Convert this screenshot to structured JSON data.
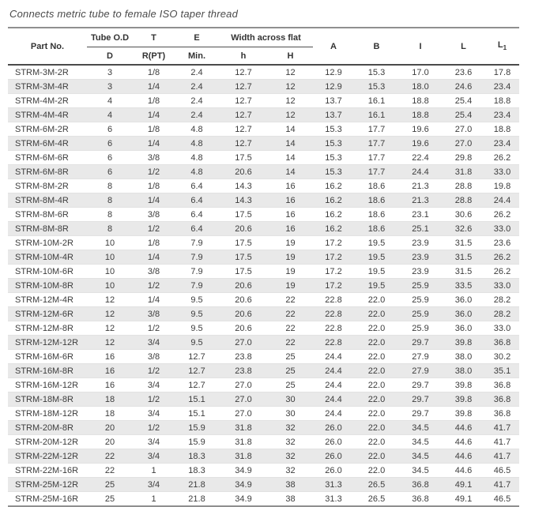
{
  "title": "Connects metric tube to female ISO taper thread",
  "table": {
    "header": {
      "part_no": "Part No.",
      "tube_od": "Tube O.D",
      "t": "T",
      "e": "E",
      "width_across_flat": "Width across flat",
      "d": "D",
      "r_pt": "R(PT)",
      "min": "Min.",
      "h_lower": "h",
      "h_upper": "H",
      "a": "A",
      "b": "B",
      "i": "I",
      "l": "L",
      "l1_base": "L",
      "l1_sub": "1"
    },
    "rows": [
      [
        "STRM-3M-2R",
        "3",
        "1/8",
        "2.4",
        "12.7",
        "12",
        "12.9",
        "15.3",
        "17.0",
        "23.6",
        "17.8"
      ],
      [
        "STRM-3M-4R",
        "3",
        "1/4",
        "2.4",
        "12.7",
        "12",
        "12.9",
        "15.3",
        "18.0",
        "24.6",
        "23.4"
      ],
      [
        "STRM-4M-2R",
        "4",
        "1/8",
        "2.4",
        "12.7",
        "12",
        "13.7",
        "16.1",
        "18.8",
        "25.4",
        "18.8"
      ],
      [
        "STRM-4M-4R",
        "4",
        "1/4",
        "2.4",
        "12.7",
        "12",
        "13.7",
        "16.1",
        "18.8",
        "25.4",
        "23.4"
      ],
      [
        "STRM-6M-2R",
        "6",
        "1/8",
        "4.8",
        "12.7",
        "14",
        "15.3",
        "17.7",
        "19.6",
        "27.0",
        "18.8"
      ],
      [
        "STRM-6M-4R",
        "6",
        "1/4",
        "4.8",
        "12.7",
        "14",
        "15.3",
        "17.7",
        "19.6",
        "27.0",
        "23.4"
      ],
      [
        "STRM-6M-6R",
        "6",
        "3/8",
        "4.8",
        "17.5",
        "14",
        "15.3",
        "17.7",
        "22.4",
        "29.8",
        "26.2"
      ],
      [
        "STRM-6M-8R",
        "6",
        "1/2",
        "4.8",
        "20.6",
        "14",
        "15.3",
        "17.7",
        "24.4",
        "31.8",
        "33.0"
      ],
      [
        "STRM-8M-2R",
        "8",
        "1/8",
        "6.4",
        "14.3",
        "16",
        "16.2",
        "18.6",
        "21.3",
        "28.8",
        "19.8"
      ],
      [
        "STRM-8M-4R",
        "8",
        "1/4",
        "6.4",
        "14.3",
        "16",
        "16.2",
        "18.6",
        "21.3",
        "28.8",
        "24.4"
      ],
      [
        "STRM-8M-6R",
        "8",
        "3/8",
        "6.4",
        "17.5",
        "16",
        "16.2",
        "18.6",
        "23.1",
        "30.6",
        "26.2"
      ],
      [
        "STRM-8M-8R",
        "8",
        "1/2",
        "6.4",
        "20.6",
        "16",
        "16.2",
        "18.6",
        "25.1",
        "32.6",
        "33.0"
      ],
      [
        "STRM-10M-2R",
        "10",
        "1/8",
        "7.9",
        "17.5",
        "19",
        "17.2",
        "19.5",
        "23.9",
        "31.5",
        "23.6"
      ],
      [
        "STRM-10M-4R",
        "10",
        "1/4",
        "7.9",
        "17.5",
        "19",
        "17.2",
        "19.5",
        "23.9",
        "31.5",
        "26.2"
      ],
      [
        "STRM-10M-6R",
        "10",
        "3/8",
        "7.9",
        "17.5",
        "19",
        "17.2",
        "19.5",
        "23.9",
        "31.5",
        "26.2"
      ],
      [
        "STRM-10M-8R",
        "10",
        "1/2",
        "7.9",
        "20.6",
        "19",
        "17.2",
        "19.5",
        "25.9",
        "33.5",
        "33.0"
      ],
      [
        "STRM-12M-4R",
        "12",
        "1/4",
        "9.5",
        "20.6",
        "22",
        "22.8",
        "22.0",
        "25.9",
        "36.0",
        "28.2"
      ],
      [
        "STRM-12M-6R",
        "12",
        "3/8",
        "9.5",
        "20.6",
        "22",
        "22.8",
        "22.0",
        "25.9",
        "36.0",
        "28.2"
      ],
      [
        "STRM-12M-8R",
        "12",
        "1/2",
        "9.5",
        "20.6",
        "22",
        "22.8",
        "22.0",
        "25.9",
        "36.0",
        "33.0"
      ],
      [
        "STRM-12M-12R",
        "12",
        "3/4",
        "9.5",
        "27.0",
        "22",
        "22.8",
        "22.0",
        "29.7",
        "39.8",
        "36.8"
      ],
      [
        "STRM-16M-6R",
        "16",
        "3/8",
        "12.7",
        "23.8",
        "25",
        "24.4",
        "22.0",
        "27.9",
        "38.0",
        "30.2"
      ],
      [
        "STRM-16M-8R",
        "16",
        "1/2",
        "12.7",
        "23.8",
        "25",
        "24.4",
        "22.0",
        "27.9",
        "38.0",
        "35.1"
      ],
      [
        "STRM-16M-12R",
        "16",
        "3/4",
        "12.7",
        "27.0",
        "25",
        "24.4",
        "22.0",
        "29.7",
        "39.8",
        "36.8"
      ],
      [
        "STRM-18M-8R",
        "18",
        "1/2",
        "15.1",
        "27.0",
        "30",
        "24.4",
        "22.0",
        "29.7",
        "39.8",
        "36.8"
      ],
      [
        "STRM-18M-12R",
        "18",
        "3/4",
        "15.1",
        "27.0",
        "30",
        "24.4",
        "22.0",
        "29.7",
        "39.8",
        "36.8"
      ],
      [
        "STRM-20M-8R",
        "20",
        "1/2",
        "15.9",
        "31.8",
        "32",
        "26.0",
        "22.0",
        "34.5",
        "44.6",
        "41.7"
      ],
      [
        "STRM-20M-12R",
        "20",
        "3/4",
        "15.9",
        "31.8",
        "32",
        "26.0",
        "22.0",
        "34.5",
        "44.6",
        "41.7"
      ],
      [
        "STRM-22M-12R",
        "22",
        "3/4",
        "18.3",
        "31.8",
        "32",
        "26.0",
        "22.0",
        "34.5",
        "44.6",
        "41.7"
      ],
      [
        "STRM-22M-16R",
        "22",
        "1",
        "18.3",
        "34.9",
        "32",
        "26.0",
        "22.0",
        "34.5",
        "44.6",
        "46.5"
      ],
      [
        "STRM-25M-12R",
        "25",
        "3/4",
        "21.8",
        "34.9",
        "38",
        "31.3",
        "26.5",
        "36.8",
        "49.1",
        "41.7"
      ],
      [
        "STRM-25M-16R",
        "25",
        "1",
        "21.8",
        "34.9",
        "38",
        "31.3",
        "26.5",
        "36.8",
        "49.1",
        "46.5"
      ]
    ]
  },
  "colors": {
    "stripe": "#e9e9e9",
    "rule_dark": "#4a4a4a",
    "rule_gray": "#8f8f8f",
    "text": "#3d3d3d"
  }
}
